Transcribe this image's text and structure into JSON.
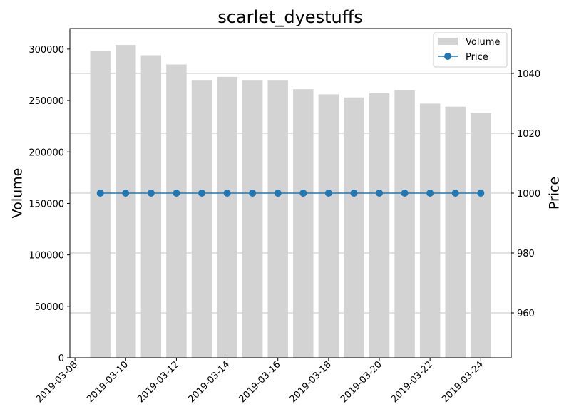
{
  "chart_data": {
    "type": "bar+line",
    "title": "scarlet_dyestuffs",
    "ylabel_left": "Volume",
    "ylabel_right": "Price",
    "x_dates": [
      "2019-03-09",
      "2019-03-10",
      "2019-03-11",
      "2019-03-12",
      "2019-03-13",
      "2019-03-14",
      "2019-03-15",
      "2019-03-16",
      "2019-03-17",
      "2019-03-18",
      "2019-03-19",
      "2019-03-20",
      "2019-03-21",
      "2019-03-22",
      "2019-03-23",
      "2019-03-24"
    ],
    "x_ticks": [
      "2019-03-08",
      "2019-03-10",
      "2019-03-12",
      "2019-03-14",
      "2019-03-16",
      "2019-03-18",
      "2019-03-20",
      "2019-03-22",
      "2019-03-24"
    ],
    "xlim": [
      "2019-03-07T19:12",
      "2019-03-25T04:48"
    ],
    "series": [
      {
        "name": "Volume",
        "kind": "bar",
        "axis": "left",
        "color": "#d3d3d3",
        "values": [
          298000,
          304000,
          294000,
          285000,
          270000,
          273000,
          270000,
          270000,
          261000,
          256000,
          253000,
          257000,
          260000,
          247000,
          244000,
          238000
        ]
      },
      {
        "name": "Price",
        "kind": "line",
        "axis": "right",
        "color": "#1f77b4",
        "values": [
          1000,
          1000,
          1000,
          1000,
          1000,
          1000,
          1000,
          1000,
          1000,
          1000,
          1000,
          1000,
          1000,
          1000,
          1000,
          1000
        ]
      }
    ],
    "ylim_left": [
      0,
      320000
    ],
    "yticks_left": [
      0,
      50000,
      100000,
      150000,
      200000,
      250000,
      300000
    ],
    "ylim_right": [
      945,
      1055
    ],
    "yticks_right": [
      960,
      980,
      1000,
      1020,
      1040
    ],
    "grid": "horizontal, right axis",
    "legend_placement": "upper right"
  }
}
